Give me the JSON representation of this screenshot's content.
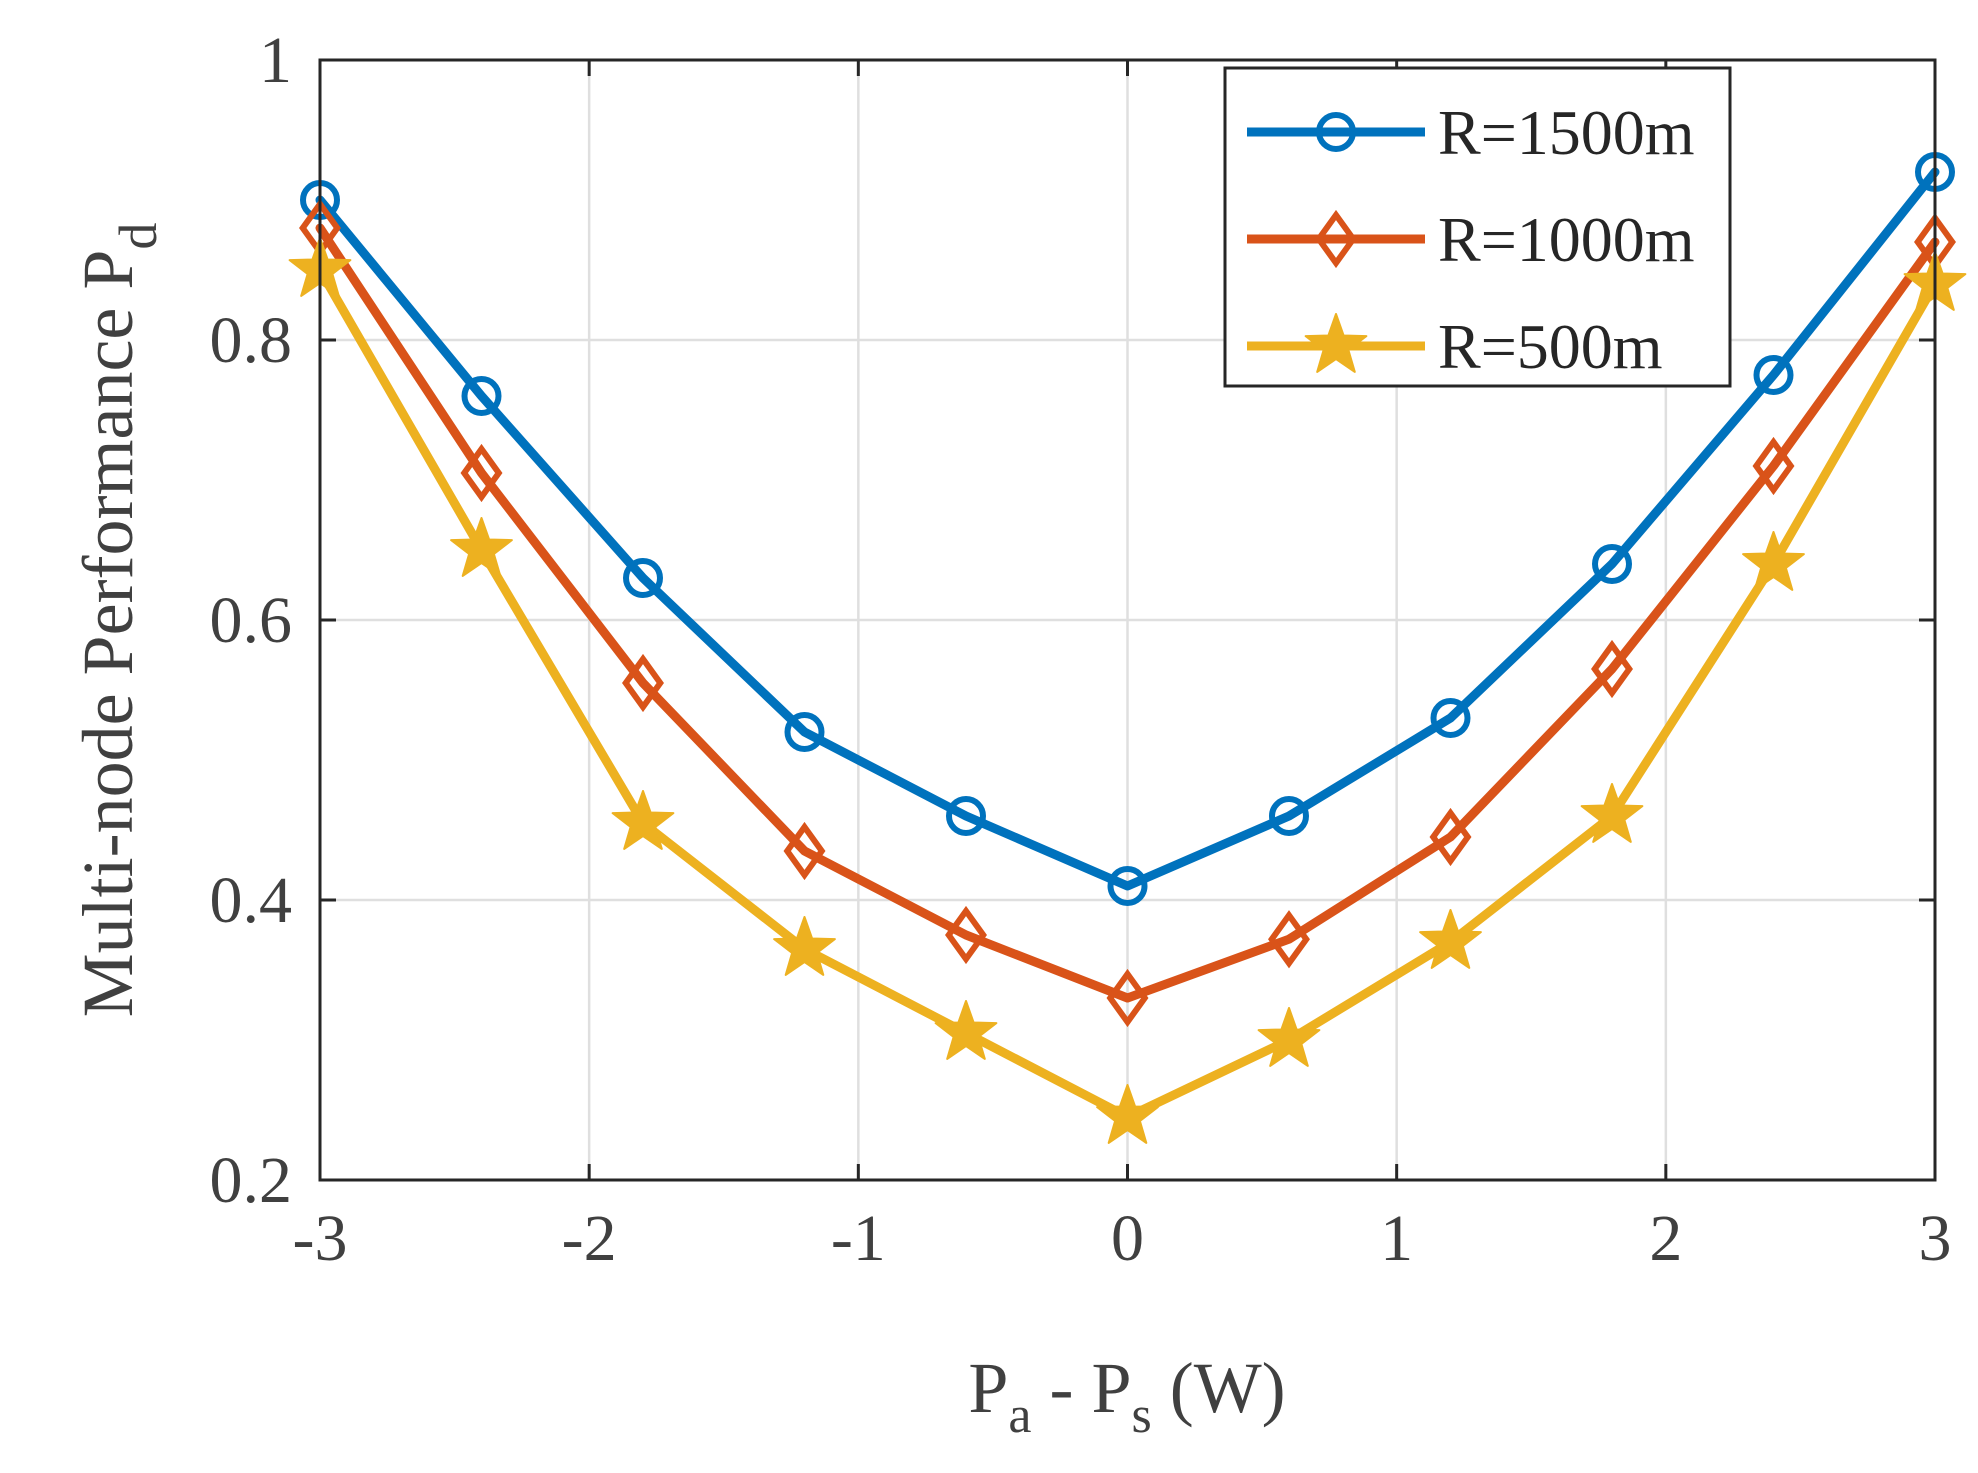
{
  "chart_data": {
    "type": "line",
    "x": [
      -3,
      -2.4,
      -1.8,
      -1.2,
      -0.6,
      0,
      0.6,
      1.2,
      1.8,
      2.4,
      3
    ],
    "xlim": [
      -3,
      3
    ],
    "ylim": [
      0.2,
      1
    ],
    "xticks": [
      -3,
      -2,
      -1,
      0,
      1,
      2,
      3
    ],
    "xtick_labels": [
      "-3",
      "-2",
      "-1",
      "0",
      "1",
      "2",
      "3"
    ],
    "yticks": [
      0.2,
      0.4,
      0.6,
      0.8,
      1
    ],
    "ytick_labels": [
      "0.2",
      "0.4",
      "0.6",
      "0.8",
      "1"
    ],
    "grid": true,
    "legend_position": "top-right",
    "xlabel": {
      "main": "P",
      "sub_a": "a",
      "mid": " - P",
      "sub_s": "s",
      "unit": " (W)"
    },
    "ylabel": {
      "main": "Multi-node Performance P",
      "sub": "d"
    },
    "series": [
      {
        "name": "R=1500m",
        "color": "#0072BD",
        "marker": "circle",
        "values": [
          0.9,
          0.76,
          0.63,
          0.52,
          0.46,
          0.41,
          0.46,
          0.53,
          0.64,
          0.775,
          0.92
        ]
      },
      {
        "name": "R=1000m",
        "color": "#D95319",
        "marker": "diamond",
        "values": [
          0.88,
          0.705,
          0.555,
          0.435,
          0.375,
          0.33,
          0.372,
          0.445,
          0.565,
          0.71,
          0.87
        ]
      },
      {
        "name": "R=500m",
        "color": "#EDB120",
        "marker": "star",
        "values": [
          0.85,
          0.65,
          0.455,
          0.365,
          0.305,
          0.245,
          0.3,
          0.37,
          0.46,
          0.64,
          0.84
        ]
      }
    ]
  }
}
